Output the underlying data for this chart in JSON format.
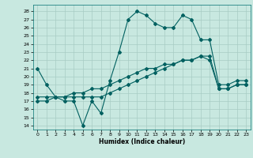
{
  "xlabel": "Humidex (Indice chaleur)",
  "bg_color": "#c8e8e0",
  "grid_color": "#a8ccc4",
  "line_color": "#006060",
  "xlim": [
    -0.5,
    23.5
  ],
  "ylim": [
    13.5,
    28.8
  ],
  "yticks": [
    14,
    15,
    16,
    17,
    18,
    19,
    20,
    21,
    22,
    23,
    24,
    25,
    26,
    27,
    28
  ],
  "xticks": [
    0,
    1,
    2,
    3,
    4,
    5,
    6,
    7,
    8,
    9,
    10,
    11,
    12,
    13,
    14,
    15,
    16,
    17,
    18,
    19,
    20,
    21,
    22,
    23
  ],
  "line1_y": [
    21.0,
    19.0,
    17.5,
    17.0,
    17.0,
    14.0,
    17.0,
    15.5,
    19.5,
    23.0,
    27.0,
    28.0,
    27.5,
    26.5,
    26.0,
    26.0,
    27.5,
    27.0,
    24.5,
    24.5,
    19.0,
    19.0,
    19.5,
    19.5
  ],
  "line2_y": [
    17.5,
    17.5,
    17.5,
    17.5,
    17.5,
    17.5,
    17.5,
    17.5,
    18.0,
    18.5,
    19.0,
    19.5,
    20.0,
    20.5,
    21.0,
    21.5,
    22.0,
    22.0,
    22.5,
    22.0,
    18.5,
    18.5,
    19.0,
    19.0
  ],
  "line3_y": [
    17.0,
    17.0,
    17.5,
    17.5,
    18.0,
    18.0,
    18.5,
    18.5,
    19.0,
    19.5,
    20.0,
    20.5,
    21.0,
    21.0,
    21.5,
    21.5,
    22.0,
    22.0,
    22.5,
    22.5,
    18.5,
    18.5,
    19.0,
    19.0
  ]
}
